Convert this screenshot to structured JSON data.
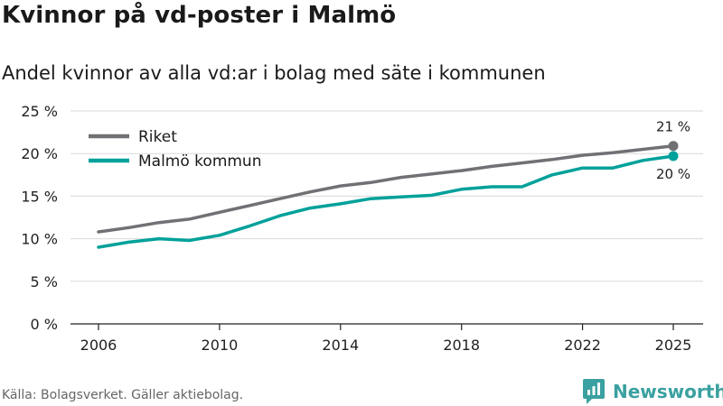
{
  "header": {
    "title": "Kvinnor på vd-poster i Malmö",
    "subtitle": "Andel kvinnor av alla vd:ar i bolag med säte i kommunen"
  },
  "footer": {
    "source": "Källa: Bolagsverket. Gäller aktiebolag.",
    "brand": "Newsworthy"
  },
  "colors": {
    "riket": "#717074",
    "malmo": "#00a19a",
    "grid": "#d9d9d9",
    "axis": "#222222",
    "brand": "#3aa1a0"
  },
  "chart_data": {
    "type": "line",
    "title": "Kvinnor på vd-poster i Malmö",
    "subtitle": "Andel kvinnor av alla vd:ar i bolag med säte i kommunen",
    "xlabel": "",
    "ylabel": "",
    "x": [
      2006,
      2007,
      2008,
      2009,
      2010,
      2011,
      2012,
      2013,
      2014,
      2015,
      2016,
      2017,
      2018,
      2019,
      2020,
      2021,
      2022,
      2023,
      2024,
      2025
    ],
    "xticks": [
      "2006",
      "2010",
      "2014",
      "2018",
      "2022",
      "2025"
    ],
    "xlim": [
      2006,
      2025
    ],
    "ylim": [
      0,
      25
    ],
    "yticks": [
      {
        "value": 0,
        "label": "0 %"
      },
      {
        "value": 5,
        "label": "5 %"
      },
      {
        "value": 10,
        "label": "10 %"
      },
      {
        "value": 15,
        "label": "15 %"
      },
      {
        "value": 20,
        "label": "20 %"
      },
      {
        "value": 25,
        "label": "25 %"
      }
    ],
    "grid": true,
    "legend_position": "top-left",
    "series": [
      {
        "name": "Riket",
        "color": "#717074",
        "values": [
          10.8,
          11.3,
          11.9,
          12.3,
          13.1,
          13.9,
          14.7,
          15.5,
          16.2,
          16.6,
          17.2,
          17.6,
          18.0,
          18.5,
          18.9,
          19.3,
          19.8,
          20.1,
          20.5,
          20.9
        ],
        "end_label": "21 %"
      },
      {
        "name": "Malmö kommun",
        "color": "#00a19a",
        "values": [
          9.0,
          9.6,
          10.0,
          9.8,
          10.4,
          11.5,
          12.7,
          13.6,
          14.1,
          14.7,
          14.9,
          15.1,
          15.8,
          16.1,
          16.1,
          17.5,
          18.3,
          18.3,
          19.2,
          19.7
        ],
        "end_label": "20 %"
      }
    ]
  }
}
